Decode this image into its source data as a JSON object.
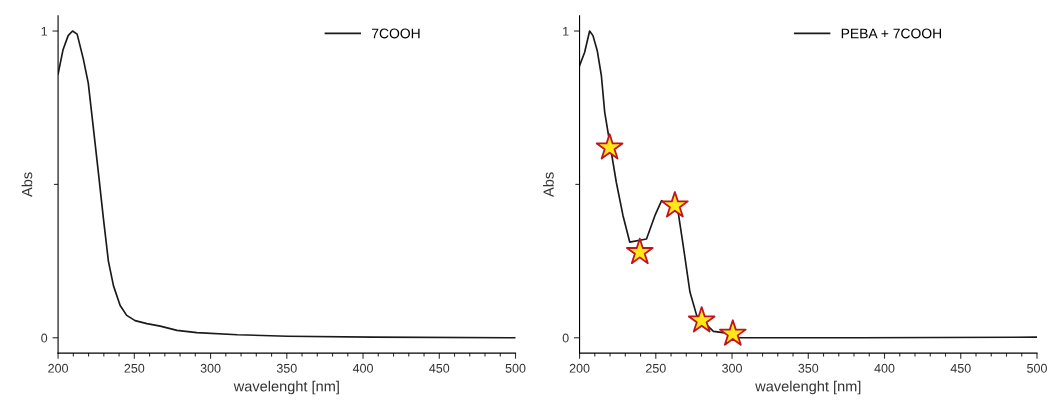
{
  "chart_data": [
    {
      "type": "line",
      "xlabel": "wavelenght [nm]",
      "ylabel": "Abs",
      "legend": "top right",
      "grid": false,
      "marker": "none",
      "line_style": "solid",
      "xlim": [
        200,
        500
      ],
      "ylim": [
        -0.05,
        1.05
      ],
      "xticks": [
        200,
        {
          "value": 210,
          "label": null
        },
        {
          "value": 220,
          "label": null
        },
        {
          "value": 230,
          "label": null
        },
        {
          "value": 240,
          "label": null
        },
        250,
        {
          "value": 260,
          "label": null
        },
        {
          "value": 270,
          "label": null
        },
        {
          "value": 280,
          "label": null
        },
        {
          "value": 290,
          "label": null
        },
        300,
        {
          "value": 310,
          "label": null
        },
        {
          "value": 320,
          "label": null
        },
        {
          "value": 330,
          "label": null
        },
        {
          "value": 340,
          "label": null
        },
        350,
        {
          "value": 360,
          "label": null
        },
        {
          "value": 370,
          "label": null
        },
        {
          "value": 380,
          "label": null
        },
        {
          "value": 390,
          "label": null
        },
        400,
        {
          "value": 410,
          "label": null
        },
        {
          "value": 420,
          "label": null
        },
        {
          "value": 430,
          "label": null
        },
        {
          "value": 440,
          "label": null
        },
        450,
        {
          "value": 460,
          "label": null
        },
        {
          "value": 470,
          "label": null
        },
        {
          "value": 480,
          "label": null
        },
        {
          "value": 490,
          "label": null
        },
        500
      ],
      "yticks": [
        0,
        {
          "value": 0.5,
          "label": null
        },
        1
      ],
      "series": [
        {
          "name": "7COOH",
          "color": "#1a1a1a",
          "x": [
            200,
            203.3,
            206.6,
            209.5,
            212.5,
            216.5,
            219.8,
            223,
            226.4,
            229.7,
            233,
            236.3,
            240.7,
            245,
            250.5,
            258.2,
            267,
            278,
            291,
            317.6,
            350.5,
            405.5,
            500
          ],
          "values": [
            0.86,
            0.94,
            0.985,
            1.0,
            0.99,
            0.91,
            0.83,
            0.69,
            0.54,
            0.39,
            0.25,
            0.17,
            0.105,
            0.073,
            0.056,
            0.046,
            0.038,
            0.024,
            0.017,
            0.01,
            0.005,
            0.002,
            0.0
          ]
        }
      ]
    },
    {
      "type": "line",
      "xlabel": "wavelenght [nm]",
      "ylabel": "Abs",
      "legend": "top right",
      "grid": false,
      "marker": "none",
      "line_style": "solid",
      "xlim": [
        200,
        500
      ],
      "ylim": [
        -0.05,
        1.05
      ],
      "xticks": [
        200,
        {
          "value": 210,
          "label": null
        },
        {
          "value": 220,
          "label": null
        },
        {
          "value": 230,
          "label": null
        },
        {
          "value": 240,
          "label": null
        },
        250,
        {
          "value": 260,
          "label": null
        },
        {
          "value": 270,
          "label": null
        },
        {
          "value": 280,
          "label": null
        },
        {
          "value": 290,
          "label": null
        },
        300,
        {
          "value": 310,
          "label": null
        },
        {
          "value": 320,
          "label": null
        },
        {
          "value": 330,
          "label": null
        },
        {
          "value": 340,
          "label": null
        },
        350,
        {
          "value": 360,
          "label": null
        },
        {
          "value": 370,
          "label": null
        },
        {
          "value": 380,
          "label": null
        },
        {
          "value": 390,
          "label": null
        },
        400,
        {
          "value": 410,
          "label": null
        },
        {
          "value": 420,
          "label": null
        },
        {
          "value": 430,
          "label": null
        },
        {
          "value": 440,
          "label": null
        },
        450,
        {
          "value": 460,
          "label": null
        },
        {
          "value": 470,
          "label": null
        },
        {
          "value": 480,
          "label": null
        },
        {
          "value": 490,
          "label": null
        },
        500
      ],
      "yticks": [
        0,
        {
          "value": 0.5,
          "label": null
        },
        1
      ],
      "series": [
        {
          "name": "PEBA + 7COOH",
          "color": "#1a1a1a",
          "x": [
            200,
            203.3,
            206.6,
            208.8,
            211.6,
            214.3,
            216.5,
            224.1,
            228.5,
            232.9,
            243.9,
            249.4,
            253.8,
            264.7,
            268,
            272.4,
            276.8,
            287.8,
            296.6,
            303,
            384,
            500
          ],
          "values": [
            0.887,
            0.93,
            1.0,
            0.985,
            0.936,
            0.855,
            0.735,
            0.507,
            0.398,
            0.312,
            0.322,
            0.398,
            0.447,
            0.409,
            0.3,
            0.149,
            0.073,
            0.021,
            0.015,
            0.0,
            0.0,
            0.002
          ]
        },
        {
          "type": "scatter",
          "marker": "star",
          "color": "#ffe81a",
          "x": [
            219.7,
            239.5,
            262.5,
            280.1,
            300.5
          ],
          "values": [
            0.62,
            0.279,
            0.431,
            0.056,
            0.013
          ]
        }
      ]
    }
  ]
}
